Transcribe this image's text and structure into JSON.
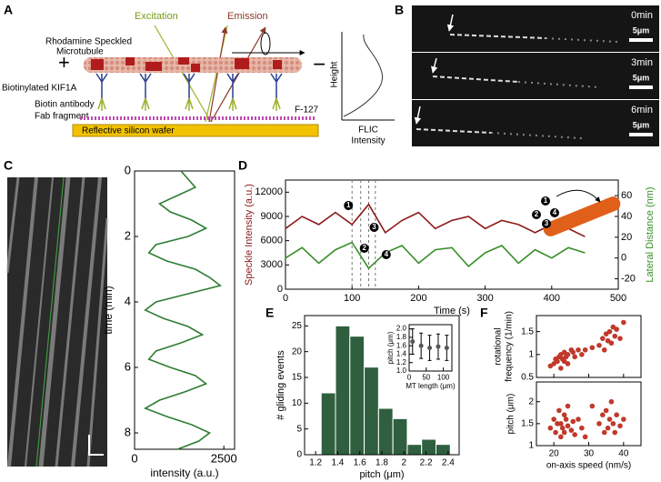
{
  "panel_labels": [
    "A",
    "B",
    "C",
    "D",
    "E",
    "F"
  ],
  "diagram": {
    "excitation": "Excitation",
    "emission": "Emission",
    "plus": "+",
    "minus": "−",
    "microtubule": [
      "Rhodamine Speckled",
      "Microtubule"
    ],
    "motor": "Biotinylated KIF1A",
    "antibody": "Biotin antibody",
    "fab": "Fab fragment",
    "blocker": "F-127",
    "wafer": "Reflective silicon wafer",
    "flic_y": "Height",
    "flic_x": [
      "FLIC",
      "Intensity"
    ]
  },
  "micrographs": {
    "times": [
      "0min",
      "3min",
      "6min"
    ],
    "scale_bar": "5μm"
  },
  "chart_data": [
    {
      "type": "line",
      "orientation": "vertical",
      "x_label": "time (min)",
      "y_label": "intensity (a.u.)",
      "x": [
        0,
        0.25,
        0.5,
        0.75,
        1,
        1.25,
        1.5,
        1.75,
        2,
        2.25,
        2.5,
        2.75,
        3,
        3.25,
        3.5,
        3.75,
        4,
        4.25,
        4.5,
        4.75,
        5,
        5.25,
        5.5,
        5.75,
        6,
        6.25,
        6.5,
        6.75,
        7,
        7.25,
        7.5,
        7.75,
        8,
        8.25,
        8.5
      ],
      "series": [
        {
          "color": "#2e7d32",
          "values": [
            1300,
            1500,
            1700,
            1200,
            700,
            1000,
            1600,
            2000,
            1500,
            600,
            400,
            900,
            1700,
            2100,
            2400,
            1500,
            600,
            300,
            800,
            1500,
            1900,
            1300,
            600,
            400,
            1000,
            1700,
            2000,
            1400,
            700,
            300,
            900,
            1600,
            2100,
            1800,
            1200
          ]
        }
      ],
      "xlim": [
        0,
        8.5
      ],
      "xticks": [
        0,
        2,
        4,
        6,
        8
      ],
      "ylim": [
        0,
        2800
      ],
      "yticks": [
        0,
        2500
      ]
    },
    {
      "type": "line",
      "x_label": "Time (s)",
      "y_label": "Speckle Intensity (a.u.)",
      "y2_label": "Lateral Distance (nm)",
      "x": [
        0,
        25,
        50,
        75,
        100,
        125,
        150,
        175,
        200,
        225,
        250,
        275,
        300,
        325,
        350,
        375,
        400,
        425,
        450
      ],
      "series": [
        {
          "color": "#8b1a1a",
          "values": [
            7500,
            9000,
            8000,
            9500,
            8000,
            10500,
            7000,
            8500,
            9500,
            7500,
            8500,
            9000,
            7500,
            8500,
            8000,
            7000,
            8000,
            7500,
            6500
          ]
        },
        {
          "color": "#3a8f2a",
          "axis": "y2",
          "values": [
            0,
            10,
            -5,
            8,
            15,
            -10,
            5,
            12,
            -5,
            8,
            10,
            -8,
            5,
            12,
            -5,
            8,
            0,
            10,
            5
          ]
        }
      ],
      "xlim": [
        0,
        500
      ],
      "xticks": [
        0,
        100,
        200,
        300,
        400,
        500
      ],
      "ylim": [
        0,
        13500
      ],
      "yticks": [
        0,
        3000,
        6000,
        9000,
        12000
      ],
      "y2lim": [
        -30,
        75
      ],
      "y2ticks": [
        -20,
        0,
        20,
        40,
        60
      ],
      "vlines": [
        100,
        113,
        125,
        135
      ],
      "annotations": [
        "1",
        "2",
        "3",
        "4"
      ]
    },
    {
      "type": "histogram",
      "x_label": "pitch (μm)",
      "y_label": "# gliding events",
      "color": "#2f5f3f",
      "bins": [
        1.25,
        1.38,
        1.51,
        1.64,
        1.77,
        1.9,
        2.03,
        2.16,
        2.29,
        2.42
      ],
      "values": [
        12,
        25,
        23,
        17,
        9,
        7,
        2,
        3,
        2
      ],
      "xlim": [
        1.1,
        2.5
      ],
      "xticks": [
        1.2,
        1.4,
        1.6,
        1.8,
        2.0,
        2.2,
        2.4
      ],
      "ylim": [
        0,
        27
      ],
      "yticks": [
        0,
        5,
        10,
        15,
        20,
        25
      ]
    },
    {
      "type": "errorbar",
      "x_label": "MT length (μm)",
      "y_label": "pitch (μm)",
      "color": "#555555",
      "x": [
        10,
        35,
        60,
        85,
        110
      ],
      "values": [
        1.7,
        1.6,
        1.55,
        1.58,
        1.55
      ],
      "errors": [
        0.3,
        0.3,
        0.3,
        0.3,
        0.3
      ],
      "xlim": [
        0,
        125
      ],
      "xticks": [
        0,
        50,
        100
      ],
      "ylim": [
        1,
        2.1
      ],
      "yticks": [
        {
          "value": 1,
          "label": "1.0"
        },
        1.2,
        1.4,
        1.6,
        1.8,
        {
          "value": 2,
          "label": "2.0"
        }
      ]
    },
    {
      "type": "scatter",
      "y_label": [
        "rotational",
        "frequency (1/min)"
      ],
      "color": "#c0392b",
      "x": [
        19,
        20,
        20.5,
        21,
        21.5,
        22,
        22,
        22.5,
        23,
        23,
        23.5,
        24,
        24,
        25,
        25.5,
        26,
        27,
        28,
        33,
        34,
        34.5,
        35,
        35.5,
        36,
        36.5,
        37,
        37.5,
        38,
        39,
        40,
        31,
        29
      ],
      "values": [
        0.75,
        0.8,
        0.9,
        0.85,
        0.95,
        0.7,
        1.0,
        0.9,
        0.85,
        1.05,
        0.95,
        1.0,
        0.8,
        1.1,
        1.05,
        0.95,
        1.1,
        1.0,
        1.2,
        1.35,
        1.1,
        1.45,
        1.3,
        1.5,
        1.25,
        1.6,
        1.4,
        1.55,
        1.35,
        1.7,
        1.15,
        1.1
      ],
      "xlim": [
        15,
        45
      ],
      "xticks": [
        20,
        30,
        40
      ],
      "ylim": [
        0.5,
        1.85
      ],
      "yticks": [
        0.5,
        1,
        1.5
      ]
    },
    {
      "type": "scatter",
      "x_label": "on-axis speed (nm/s)",
      "y_label": "pitch (μm)",
      "color": "#c0392b",
      "x": [
        19,
        20,
        20.5,
        21,
        21.5,
        22,
        22,
        22.5,
        23,
        23,
        23.5,
        24,
        24,
        25,
        25.5,
        26,
        27,
        28,
        33,
        34,
        34.5,
        35,
        35.5,
        36,
        36.5,
        37,
        37.5,
        38,
        39,
        40,
        31,
        29
      ],
      "values": [
        1.4,
        1.6,
        1.3,
        1.5,
        1.8,
        1.2,
        1.5,
        1.4,
        1.7,
        1.3,
        1.6,
        1.45,
        1.9,
        1.35,
        1.55,
        1.25,
        1.6,
        1.4,
        1.5,
        1.7,
        1.3,
        1.8,
        1.4,
        1.6,
        2.0,
        1.5,
        1.3,
        1.7,
        1.45,
        1.6,
        1.9,
        1.2
      ],
      "xlim": [
        15,
        45
      ],
      "xticks": [
        20,
        30,
        40
      ],
      "ylim": [
        1,
        2.45
      ],
      "yticks": [
        1,
        1.5,
        2
      ]
    }
  ]
}
